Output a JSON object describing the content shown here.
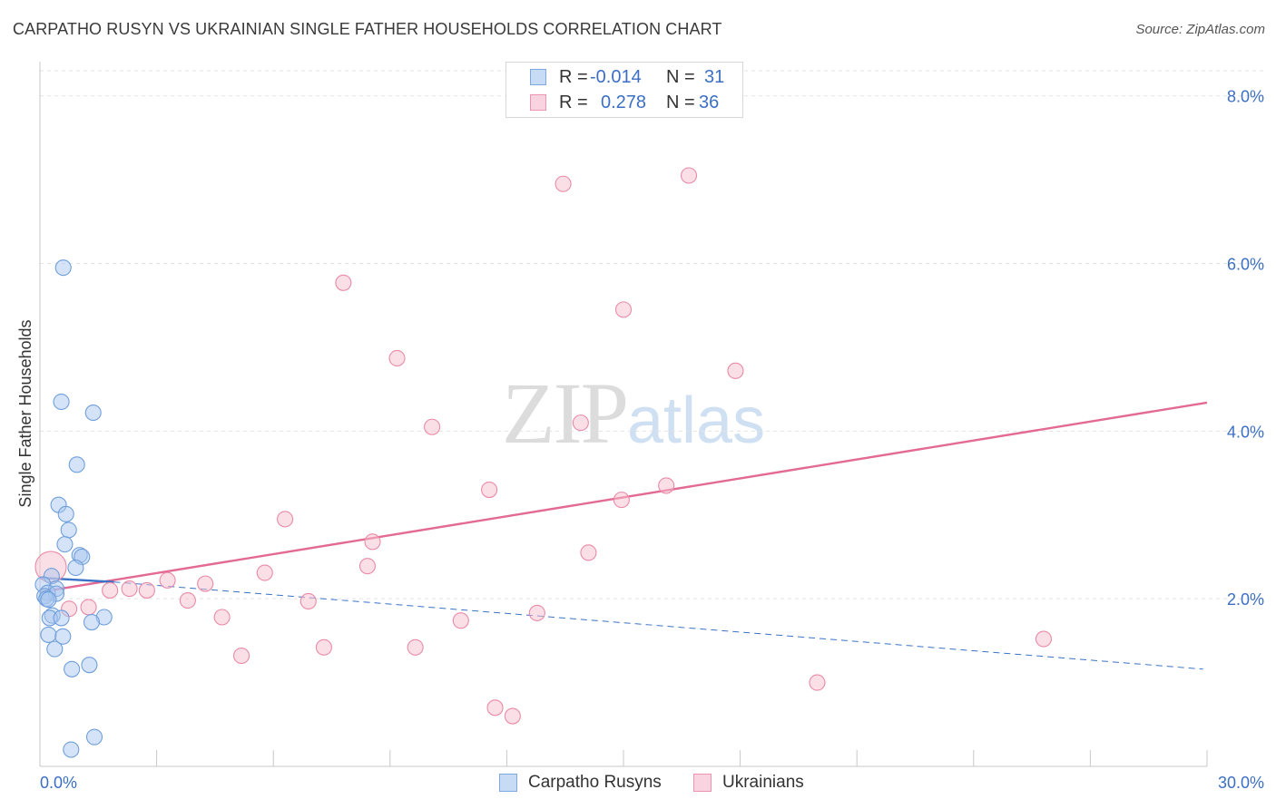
{
  "title": "CARPATHO RUSYN VS UKRAINIAN SINGLE FATHER HOUSEHOLDS CORRELATION CHART",
  "source": "Source: ZipAtlas.com",
  "watermark": {
    "zip": "ZIP",
    "atlas": "atlas"
  },
  "legend": {
    "rows": [
      {
        "r_label": "R =",
        "r_value": "-0.014",
        "n_label": "N =",
        "n_value": "31",
        "color": "#a9c8ef",
        "border": "#6f9fdb"
      },
      {
        "r_label": "R =",
        "r_value": "0.278",
        "n_label": "N =",
        "n_value": "36",
        "color": "#f7c0d0",
        "border": "#e98aa8"
      }
    ]
  },
  "chart_data": {
    "type": "scatter",
    "title": "CARPATHO RUSYN VS UKRAINIAN SINGLE FATHER HOUSEHOLDS CORRELATION CHART",
    "xlabel": "",
    "ylabel": "Single Father Households",
    "xlim": [
      0,
      30
    ],
    "ylim": [
      0,
      8.3
    ],
    "x_ticks_labeled": [
      "0.0%",
      "30.0%"
    ],
    "y_tick_labels": [
      {
        "value": 2,
        "label": "2.0%"
      },
      {
        "value": 4,
        "label": "4.0%"
      },
      {
        "value": 6,
        "label": "6.0%"
      },
      {
        "value": 8,
        "label": "8.0%"
      }
    ],
    "grid": "horizontal dashed",
    "legend_placement": "top-center and bottom-center",
    "series": [
      {
        "name": "Carpatho Rusyns",
        "color": "#a9c8ef",
        "edge": "#6f9fdb",
        "trend_color": "#3a72c8",
        "trend_solid": {
          "x": [
            0.0,
            1.9
          ],
          "y": [
            2.25,
            2.2
          ]
        },
        "trend_dashed": {
          "x": [
            1.9,
            29.9
          ],
          "y": [
            2.2,
            1.16
          ]
        },
        "points": [
          {
            "x": 0.6,
            "y": 5.95
          },
          {
            "x": 0.55,
            "y": 4.35
          },
          {
            "x": 1.37,
            "y": 4.22
          },
          {
            "x": 0.95,
            "y": 3.6
          },
          {
            "x": 0.48,
            "y": 3.12
          },
          {
            "x": 0.67,
            "y": 3.01
          },
          {
            "x": 0.74,
            "y": 2.82
          },
          {
            "x": 0.64,
            "y": 2.65
          },
          {
            "x": 1.02,
            "y": 2.52
          },
          {
            "x": 1.08,
            "y": 2.5
          },
          {
            "x": 0.92,
            "y": 2.37
          },
          {
            "x": 0.3,
            "y": 2.27
          },
          {
            "x": 0.08,
            "y": 2.17
          },
          {
            "x": 0.42,
            "y": 2.12
          },
          {
            "x": 0.2,
            "y": 2.07
          },
          {
            "x": 0.42,
            "y": 2.06
          },
          {
            "x": 0.12,
            "y": 2.03
          },
          {
            "x": 0.17,
            "y": 2.0
          },
          {
            "x": 0.22,
            "y": 1.99
          },
          {
            "x": 0.32,
            "y": 1.8
          },
          {
            "x": 0.25,
            "y": 1.77
          },
          {
            "x": 0.55,
            "y": 1.77
          },
          {
            "x": 1.65,
            "y": 1.78
          },
          {
            "x": 1.33,
            "y": 1.72
          },
          {
            "x": 0.22,
            "y": 1.57
          },
          {
            "x": 0.59,
            "y": 1.55
          },
          {
            "x": 0.38,
            "y": 1.4
          },
          {
            "x": 1.27,
            "y": 1.21
          },
          {
            "x": 0.82,
            "y": 1.16
          },
          {
            "x": 1.4,
            "y": 0.35
          },
          {
            "x": 0.8,
            "y": 0.2
          }
        ]
      },
      {
        "name": "Ukrainians",
        "color": "#f7c0d0",
        "edge": "#e98aa8",
        "trend_color": "#e36a93",
        "trend": {
          "x": [
            0.0,
            30.0
          ],
          "y": [
            2.08,
            4.34
          ]
        },
        "points": [
          {
            "x": 0.28,
            "y": 2.38,
            "big": true
          },
          {
            "x": 0.75,
            "y": 1.88
          },
          {
            "x": 1.25,
            "y": 1.9
          },
          {
            "x": 1.8,
            "y": 2.1
          },
          {
            "x": 2.3,
            "y": 2.12
          },
          {
            "x": 2.75,
            "y": 2.1
          },
          {
            "x": 3.28,
            "y": 2.22
          },
          {
            "x": 3.8,
            "y": 1.98
          },
          {
            "x": 4.25,
            "y": 2.18
          },
          {
            "x": 4.68,
            "y": 1.78
          },
          {
            "x": 5.18,
            "y": 1.32
          },
          {
            "x": 5.78,
            "y": 2.31
          },
          {
            "x": 6.3,
            "y": 2.95
          },
          {
            "x": 6.9,
            "y": 1.97
          },
          {
            "x": 7.3,
            "y": 1.42
          },
          {
            "x": 7.8,
            "y": 5.77
          },
          {
            "x": 8.42,
            "y": 2.39
          },
          {
            "x": 8.55,
            "y": 2.68
          },
          {
            "x": 9.18,
            "y": 4.87
          },
          {
            "x": 9.65,
            "y": 1.42
          },
          {
            "x": 10.08,
            "y": 4.05
          },
          {
            "x": 10.82,
            "y": 1.74
          },
          {
            "x": 11.55,
            "y": 3.3
          },
          {
            "x": 11.7,
            "y": 0.7
          },
          {
            "x": 12.15,
            "y": 0.6
          },
          {
            "x": 12.78,
            "y": 1.83
          },
          {
            "x": 13.45,
            "y": 6.95
          },
          {
            "x": 13.9,
            "y": 4.1
          },
          {
            "x": 14.1,
            "y": 2.55
          },
          {
            "x": 14.95,
            "y": 3.18
          },
          {
            "x": 15.0,
            "y": 5.45
          },
          {
            "x": 16.1,
            "y": 3.35
          },
          {
            "x": 16.68,
            "y": 7.05
          },
          {
            "x": 17.88,
            "y": 4.72
          },
          {
            "x": 19.98,
            "y": 1.0
          },
          {
            "x": 25.8,
            "y": 1.52
          }
        ]
      }
    ]
  }
}
